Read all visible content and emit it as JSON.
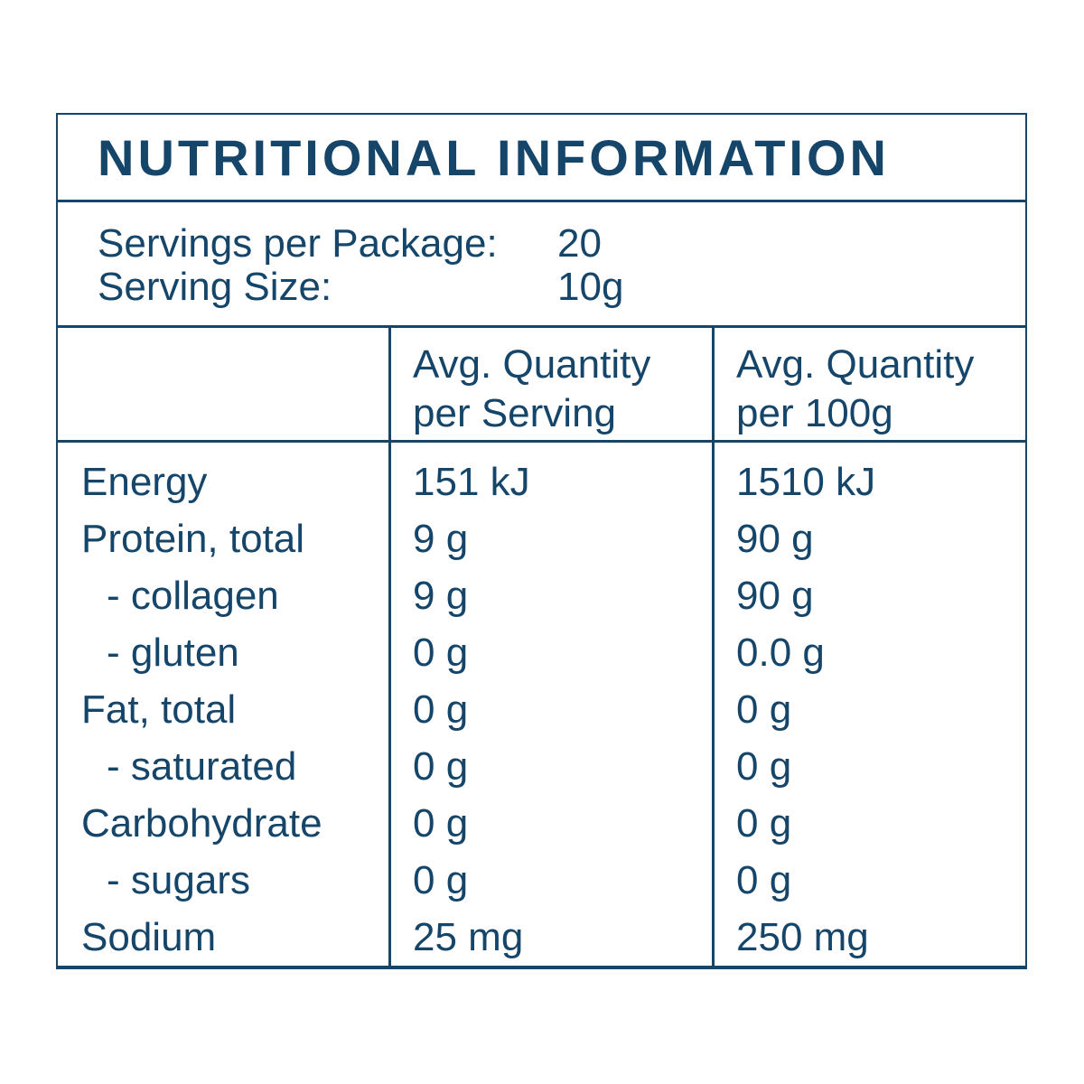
{
  "colors": {
    "navy": "#15466A",
    "background": "#FFFFFF"
  },
  "title": "NUTRITIONAL INFORMATION",
  "serving_info": {
    "servings_per_package_label": "Servings per Package:",
    "servings_per_package_value": "20",
    "serving_size_label": "Serving Size:",
    "serving_size_value": "10g"
  },
  "table": {
    "columns": {
      "per_serving": {
        "line1": "Avg. Quantity",
        "line2": "per Serving"
      },
      "per_100g": {
        "line1": "Avg. Quantity",
        "line2": "per 100g"
      }
    },
    "rows": [
      {
        "nutrient": "Energy",
        "indent": false,
        "per_serving": "151 kJ",
        "per_100g": "1510 kJ"
      },
      {
        "nutrient": "Protein, total",
        "indent": false,
        "per_serving": "9 g",
        "per_100g": "90 g"
      },
      {
        "nutrient": "- collagen",
        "indent": true,
        "per_serving": "9 g",
        "per_100g": "90 g"
      },
      {
        "nutrient": "- gluten",
        "indent": true,
        "per_serving": "0 g",
        "per_100g": "0.0 g"
      },
      {
        "nutrient": "Fat, total",
        "indent": false,
        "per_serving": "0 g",
        "per_100g": "0 g"
      },
      {
        "nutrient": "- saturated",
        "indent": true,
        "per_serving": "0 g",
        "per_100g": "0 g"
      },
      {
        "nutrient": "Carbohydrate",
        "indent": false,
        "per_serving": "0 g",
        "per_100g": "0 g"
      },
      {
        "nutrient": "- sugars",
        "indent": true,
        "per_serving": "0 g",
        "per_100g": "0 g"
      },
      {
        "nutrient": "Sodium",
        "indent": false,
        "per_serving": "25 mg",
        "per_100g": "250 mg"
      }
    ]
  }
}
